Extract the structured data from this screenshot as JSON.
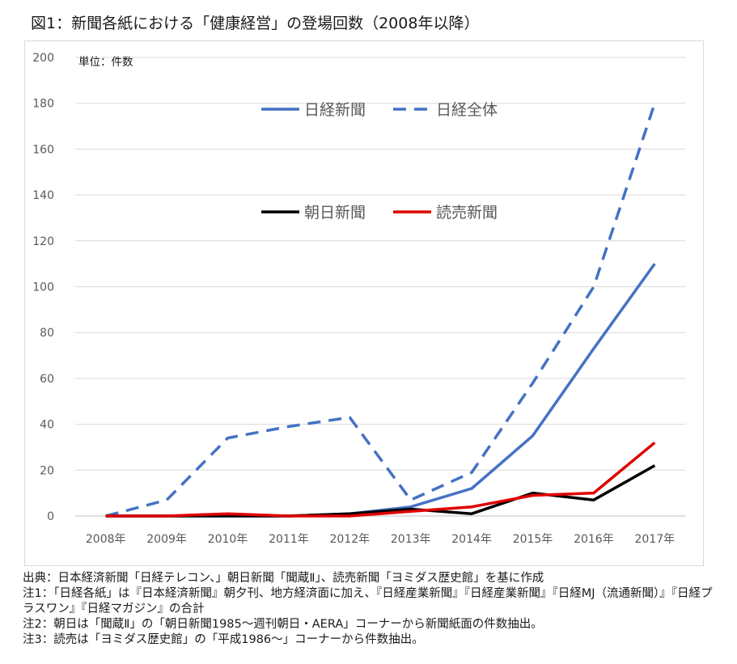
{
  "figure_title": "図1：新聞各紙における「健康経営」の登場回数（2008年以降）",
  "chart_data": {
    "type": "line",
    "unit_label": "単位：件数",
    "categories": [
      "2008年",
      "2009年",
      "2010年",
      "2011年",
      "2012年",
      "2013年",
      "2014年",
      "2015年",
      "2016年",
      "2017年"
    ],
    "ylim": [
      0,
      200
    ],
    "yticks": [
      0,
      20,
      40,
      60,
      80,
      100,
      120,
      140,
      160,
      180,
      200
    ],
    "grid": true,
    "series": [
      {
        "name": "日経新聞",
        "color": "#4472c4",
        "dash": "solid",
        "values": [
          0,
          0,
          0,
          0,
          1,
          4,
          12,
          35,
          73,
          110
        ]
      },
      {
        "name": "日経全体",
        "color": "#4472c4",
        "dash": "dashed",
        "values": [
          0,
          7,
          34,
          39,
          43,
          7,
          19,
          58,
          100,
          180
        ]
      },
      {
        "name": "朝日新聞",
        "color": "#000000",
        "dash": "solid",
        "values": [
          0,
          0,
          0,
          0,
          1,
          3,
          1,
          10,
          7,
          22
        ]
      },
      {
        "name": "読売新聞",
        "color": "#e00000",
        "dash": "solid",
        "values": [
          0,
          0,
          1,
          0,
          0,
          2,
          4,
          9,
          10,
          32
        ]
      }
    ]
  },
  "notes": [
    "出典：日本経済新聞「日経テレコン、」朝日新聞「聞蔵Ⅱ」、読売新聞「ヨミダス歴史館」を基に作成",
    "注1：「日経各紙」は『日本経済新聞』朝夕刊、地方経済面に加え、『日経産業新聞』『日経産業新聞』『日経MJ（流通新聞）』『日経プラスワン』『日経マガジン』の合計",
    "注2：朝日は「聞蔵Ⅱ」の「朝日新聞1985～週刊朝日・AERA」コーナーから新聞紙面の件数抽出。",
    "注3：読売は「ヨミダス歴史館」の「平成1986～」コーナーから件数抽出。"
  ]
}
